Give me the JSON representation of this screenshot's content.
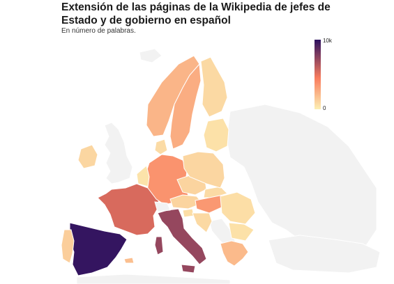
{
  "title": "Extensión de las páginas de la Wikipedia de jefes de Estado y de gobierno en español",
  "subtitle": "En número de palabras.",
  "legend": {
    "max_label": "10k",
    "min_label": "0",
    "color_low": "#fcf0b4",
    "color_mid": "#f97c5d",
    "color_high": "#2d1160"
  },
  "colors": {
    "no_data": "#f2f2f2",
    "border": "#ffffff"
  },
  "countries": [
    {
      "name": "Spain",
      "value": 9800
    },
    {
      "name": "Italy",
      "value": 7200
    },
    {
      "name": "France",
      "value": 5400
    },
    {
      "name": "Germany",
      "value": 3600
    },
    {
      "name": "Hungary",
      "value": 3400
    },
    {
      "name": "Sweden",
      "value": 2600
    },
    {
      "name": "Norway",
      "value": 2300
    },
    {
      "name": "Greece",
      "value": 2100
    },
    {
      "name": "Malta",
      "value": 1900
    },
    {
      "name": "Portugal",
      "value": 1300
    },
    {
      "name": "Finland",
      "value": 900
    },
    {
      "name": "Poland",
      "value": 1000
    },
    {
      "name": "Czechia",
      "value": 1100
    },
    {
      "name": "Austria",
      "value": 1100
    },
    {
      "name": "Ireland",
      "value": 1000
    },
    {
      "name": "Denmark",
      "value": 800
    },
    {
      "name": "Romania",
      "value": 700
    },
    {
      "name": "Baltics",
      "value": 600
    },
    {
      "name": "Benelux",
      "value": 500
    },
    {
      "name": "Slovakia",
      "value": 800
    },
    {
      "name": "Croatia",
      "value": 900
    },
    {
      "name": "Slovenia",
      "value": 700
    },
    {
      "name": "Bulgaria",
      "value": 600
    },
    {
      "name": "Switzerland",
      "value": 0
    }
  ]
}
